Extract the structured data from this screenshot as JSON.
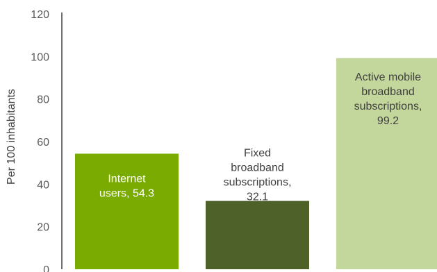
{
  "chart_data": {
    "type": "bar",
    "title": "",
    "xlabel": "",
    "ylabel": "Per 100 inhabitants",
    "ylim": [
      0,
      120
    ],
    "ytick_values": [
      0,
      20,
      40,
      60,
      80,
      100,
      120
    ],
    "yticks": [
      "0",
      "20",
      "40",
      "60",
      "80",
      "100",
      "120"
    ],
    "grid": false,
    "categories": [
      "Internet users",
      "Fixed broadband subscriptions",
      "Active mobile broadband subscriptions"
    ],
    "values": [
      54.3,
      32.1,
      99.2
    ],
    "data_labels": [
      [
        "Internet",
        "users, 54.3"
      ],
      [
        "Fixed",
        "broadband",
        "subscriptions,",
        "32.1"
      ],
      [
        "Active mobile",
        "broadband",
        "subscriptions,",
        "99.2"
      ]
    ],
    "colors": [
      "#7aab00",
      "#4e6128",
      "#c3d69b"
    ],
    "label_colors": [
      "#ffffff",
      "#404040",
      "#404040"
    ]
  }
}
